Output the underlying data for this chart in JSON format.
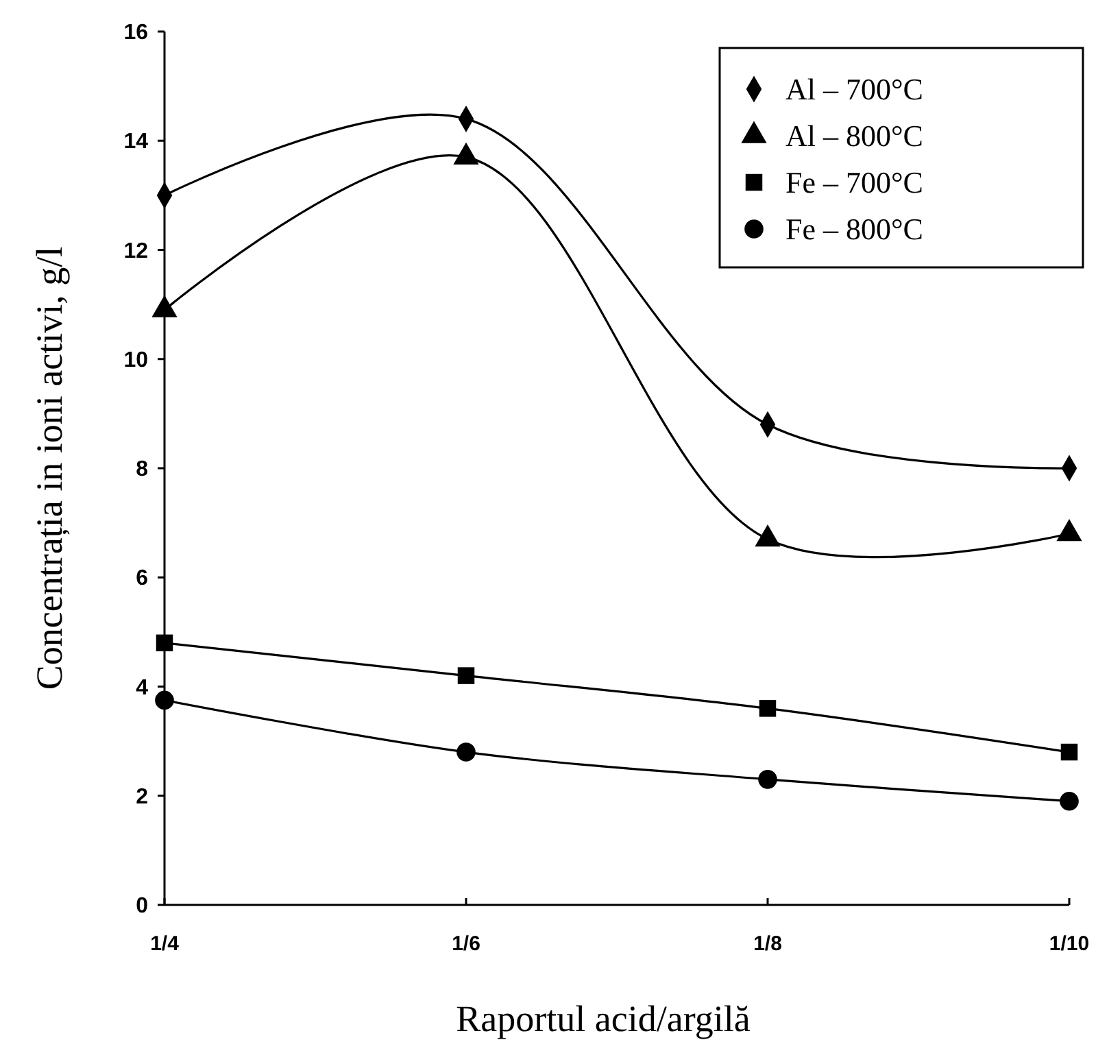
{
  "chart_data": {
    "type": "line",
    "xlabel": "Raportul acid/argilă",
    "ylabel": "Concentrația in ioni activi, g/l",
    "categories": [
      "1/4",
      "1/6",
      "1/8",
      "1/10"
    ],
    "ylim": [
      0,
      16
    ],
    "yticks": [
      0,
      2,
      4,
      6,
      8,
      10,
      12,
      14,
      16
    ],
    "grid": false,
    "legend": "top right",
    "line_style": "solid",
    "series": [
      {
        "name": "Al – 700°C",
        "color": "#000000",
        "marker": "diamond",
        "values": [
          13,
          14.4,
          8.8,
          8.0
        ]
      },
      {
        "name": "Al – 800°C",
        "color": "#000000",
        "marker": "triangle",
        "values": [
          10.9,
          13.7,
          6.7,
          6.8
        ]
      },
      {
        "name": "Fe – 700°C",
        "color": "#000000",
        "marker": "square",
        "values": [
          4.8,
          4.2,
          3.6,
          2.8
        ]
      },
      {
        "name": "Fe – 800°C",
        "color": "#000000",
        "marker": "circle",
        "values": [
          3.75,
          2.8,
          2.3,
          1.9
        ]
      }
    ]
  }
}
